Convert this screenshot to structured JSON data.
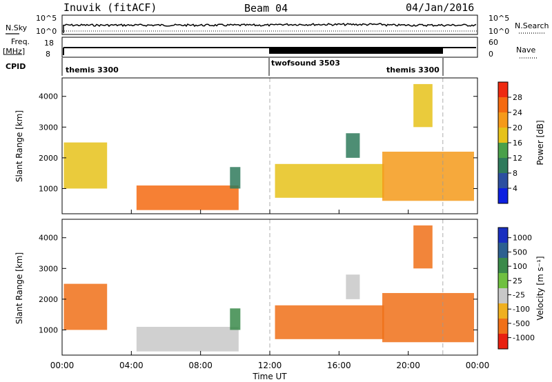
{
  "header": {
    "radar": "Inuvik (fitACF)",
    "beam": "Beam 04",
    "date": "04/Jan/2016"
  },
  "noise_panel": {
    "left_label": "N.Sky",
    "right_label": "N.Search",
    "left_ticks": [
      "10^5",
      "10^0"
    ],
    "right_ticks": [
      "10^5",
      "10^0"
    ]
  },
  "freq_panel": {
    "left_label": "Freq.",
    "left_unit": "[MHz]",
    "right_label": "Nave",
    "left_ticks": [
      "18",
      "8"
    ],
    "right_ticks": [
      "60",
      "0"
    ]
  },
  "cpid": {
    "label": "CPID",
    "segments": [
      {
        "name": "themis 3300",
        "start_hour": 0,
        "end_hour": 12
      },
      {
        "name": "twofsound 3503",
        "start_hour": 12,
        "end_hour": 22
      },
      {
        "name": "themis 3300",
        "start_hour": 22,
        "end_hour": 24
      }
    ]
  },
  "chart_data": [
    {
      "type": "heatmap",
      "name": "power",
      "ylabel": "Slant Range [km]",
      "xlabel": "",
      "x_range_hours": [
        0,
        24
      ],
      "ylim": [
        180,
        4600
      ],
      "y_ticks": [
        "1000",
        "2000",
        "3000",
        "4000"
      ],
      "colorbar": {
        "label": "Power [dB]",
        "ticks": [
          "4",
          "8",
          "12",
          "16",
          "20",
          "24",
          "28"
        ],
        "colors": [
          "#0d1fe0",
          "#2c4fa0",
          "#2f7a5c",
          "#4aa04a",
          "#e6c21a",
          "#f59a1a",
          "#f46a10",
          "#ee2a10"
        ]
      },
      "regions": [
        {
          "t0": 0.1,
          "t1": 2.6,
          "r0": 1000,
          "r1": 2500,
          "value": 18
        },
        {
          "t0": 4.3,
          "t1": 10.2,
          "r0": 300,
          "r1": 1100,
          "value": 26
        },
        {
          "t0": 9.7,
          "t1": 10.3,
          "r0": 1000,
          "r1": 1700,
          "value": 10
        },
        {
          "t0": 12.3,
          "t1": 18.6,
          "r0": 700,
          "r1": 1800,
          "value": 18
        },
        {
          "t0": 16.4,
          "t1": 17.2,
          "r0": 2000,
          "r1": 2800,
          "value": 10
        },
        {
          "t0": 18.5,
          "t1": 23.8,
          "r0": 600,
          "r1": 2200,
          "value": 22
        },
        {
          "t0": 20.3,
          "t1": 21.4,
          "r0": 3000,
          "r1": 4400,
          "value": 16
        }
      ],
      "reference_lines_hours": [
        12,
        22
      ]
    },
    {
      "type": "heatmap",
      "name": "velocity",
      "ylabel": "Slant Range [km]",
      "xlabel": "Time UT",
      "x_range_hours": [
        0,
        24
      ],
      "x_ticks": [
        "00:00",
        "04:00",
        "08:00",
        "12:00",
        "16:00",
        "20:00",
        "00:00"
      ],
      "ylim": [
        180,
        4600
      ],
      "y_ticks": [
        "1000",
        "2000",
        "3000",
        "4000"
      ],
      "colorbar": {
        "label": "Velocity [m s⁻¹]",
        "ticks": [
          "1000",
          "500",
          "100",
          "25",
          "-25",
          "-100",
          "-500",
          "-1000"
        ],
        "colors": [
          "#1a2fc0",
          "#2c6090",
          "#3a8a4a",
          "#6fc040",
          "#c8c8c8",
          "#f0b020",
          "#f07018",
          "#e82010"
        ]
      },
      "regions": [
        {
          "t0": 0.1,
          "t1": 2.6,
          "r0": 1000,
          "r1": 2500,
          "value": -200
        },
        {
          "t0": 4.3,
          "t1": 10.2,
          "r0": 300,
          "r1": 1100,
          "value": 20
        },
        {
          "t0": 9.7,
          "t1": 10.3,
          "r0": 1000,
          "r1": 1700,
          "value": 300
        },
        {
          "t0": 12.3,
          "t1": 18.6,
          "r0": 700,
          "r1": 1800,
          "value": -150
        },
        {
          "t0": 16.4,
          "t1": 17.2,
          "r0": 2000,
          "r1": 2800,
          "value": 10
        },
        {
          "t0": 18.5,
          "t1": 23.8,
          "r0": 600,
          "r1": 2200,
          "value": -120
        },
        {
          "t0": 20.3,
          "t1": 21.4,
          "r0": 3000,
          "r1": 4400,
          "value": -200
        }
      ],
      "reference_lines_hours": [
        12,
        22
      ]
    }
  ]
}
